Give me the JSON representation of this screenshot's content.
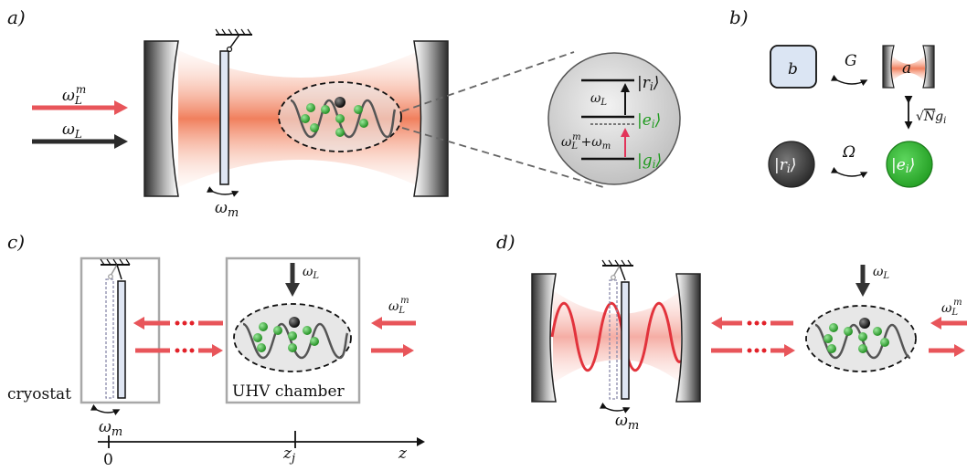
{
  "colors": {
    "laser_red": "#e8555a",
    "beam_orange": "#f07a55",
    "atom_green": "#2ca02c",
    "ion_black": "#111111",
    "mirror_gray": "#555555",
    "box_gray": "#a8a8a8",
    "membrane_blue": "#dfe6f3",
    "mode_b_fill": "#dbe5f3",
    "level_e_green": "#1e9a1e"
  },
  "panel_a": {
    "label": "a)",
    "laser_top": "ω",
    "laser_top_sub": "L",
    "laser_top_sup": "m",
    "laser_bottom": "ω",
    "laser_bottom_sub": "L",
    "membrane_freq": "ω",
    "membrane_freq_sub": "m",
    "levels": {
      "r": "|r",
      "r_sub": "i",
      "e": "|e",
      "e_sub": "i",
      "g": "|g",
      "g_sub": "i",
      "close": "⟩",
      "coupling": "ω",
      "coupling_sub": "L",
      "drive": "ω",
      "drive_sub": "L",
      "drive_sup": "m",
      "drive_plus": "+ω",
      "drive_plus_sub": "m"
    }
  },
  "panel_b": {
    "label": "b)",
    "mode_b": "b",
    "mode_a": "a",
    "G": "G",
    "coupling_sqrt": "√",
    "coupling_N": "N",
    "coupling_g": "g",
    "coupling_g_sub": "i",
    "r": "|r",
    "r_sub": "i",
    "e": "|e",
    "e_sub": "i",
    "close": "⟩",
    "Omega": "Ω"
  },
  "panel_c": {
    "label": "c)",
    "laser_top": "ω",
    "laser_top_sub": "L",
    "laser_right": "ω",
    "laser_right_sub": "L",
    "laser_right_sup": "m",
    "cryostat": "cryostat",
    "chamber": "UHV chamber",
    "membrane_freq": "ω",
    "membrane_freq_sub": "m",
    "axis_zero": "0",
    "axis_zj": "z",
    "axis_zj_sub": "j",
    "axis_z": "z"
  },
  "panel_d": {
    "label": "d)",
    "laser_top": "ω",
    "laser_top_sub": "L",
    "laser_right": "ω",
    "laser_right_sub": "L",
    "laser_right_sup": "m",
    "membrane_freq": "ω",
    "membrane_freq_sub": "m"
  }
}
